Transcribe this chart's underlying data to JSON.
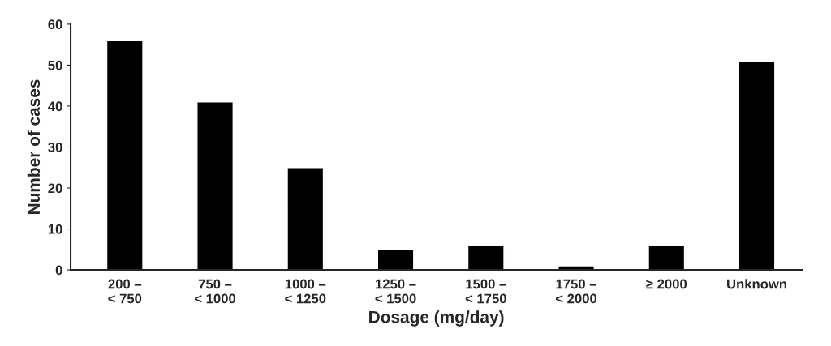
{
  "chart_data": {
    "type": "bar",
    "xlabel": "Dosage (mg/day)",
    "ylabel": "Number of cases",
    "categories": [
      "200 –\n< 750",
      "750 –\n< 1000",
      "1000 –\n< 1250",
      "1250 –\n< 1500",
      "1500 –\n< 1750",
      "1750 –\n< 2000",
      "≥ 2000",
      "Unknown"
    ],
    "values": [
      56,
      41,
      25,
      5,
      6,
      1,
      6,
      51
    ],
    "color": "#000000",
    "ylim": [
      0,
      60
    ],
    "yticks": [
      0,
      10,
      20,
      30,
      40,
      50,
      60
    ],
    "grid": false
  }
}
